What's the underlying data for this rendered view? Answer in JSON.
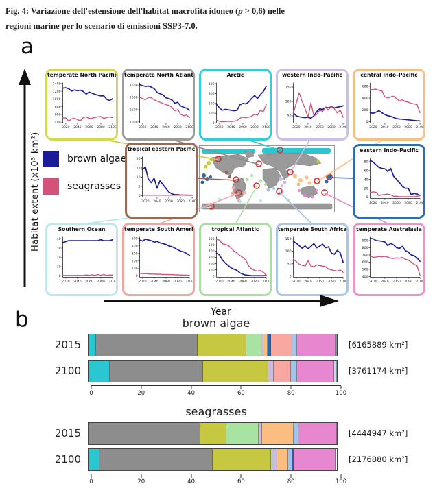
{
  "figure": {
    "caption_part1": "Fig. 4: Variazione dell'estensione dell'habitat macrofita idoneo (",
    "caption_p": "p",
    "caption_part2": " > 0,6) nelle",
    "caption_line2": "regioni marine per lo scenario di emissioni SSP3-7.0.",
    "panel_a_label": "a",
    "panel_b_label": "b"
  },
  "panel_a": {
    "y_axis_label": "Habitat extent (x10³ km²)",
    "x_axis_label": "Year",
    "years": [
      2015,
      2020,
      2025,
      2030,
      2035,
      2040,
      2045,
      2050,
      2055,
      2060,
      2065,
      2070,
      2075,
      2080,
      2085,
      2090,
      2095,
      2100
    ],
    "xticks": [
      2020,
      2040,
      2060,
      2080,
      2100
    ],
    "series_colors": {
      "brown_algae": "#1c1c99",
      "seagrasses": "#d4517a"
    },
    "legend": [
      {
        "series": "brown_algae",
        "label": "brown algae"
      },
      {
        "series": "seagrasses",
        "label": "seagrasses"
      }
    ]
  },
  "region_colors": {
    "arctic": "#2cc6d0",
    "temperate_north_atlantic": "#8d8d8d",
    "temperate_north_pacific": "#c6c93f",
    "tropical_atlantic": "#a9e3a1",
    "western_indo_pacific": "#c9bce0",
    "central_indo_pacific": "#fbbd80",
    "eastern_indo_pacific": "#2c66ae",
    "tropical_eastern_pacific": "#96604f",
    "temperate_south_america": "#f8a8a0",
    "temperate_south_africa": "#a3c4e9",
    "temperate_australasia": "#e687cf",
    "southern_ocean": "#aee8ed"
  },
  "chart_data": [
    {
      "id": "temperate-north-pacific",
      "type": "line",
      "title": "temperate North Pacific",
      "border_color": "#d4d94e",
      "ylim": [
        380,
        1420
      ],
      "yticks": [
        400,
        600,
        800,
        1000,
        1200,
        1400
      ],
      "series": [
        {
          "name": "brown_algae",
          "values": [
            1280,
            1290,
            1265,
            1205,
            1235,
            1215,
            1230,
            1195,
            1125,
            1180,
            1150,
            1120,
            1100,
            1080,
            1085,
            990,
            960,
            1010
          ]
        },
        {
          "name": "seagrasses",
          "values": [
            510,
            515,
            430,
            490,
            505,
            470,
            435,
            525,
            540,
            500,
            505,
            525,
            540,
            550,
            500,
            525,
            540,
            520
          ]
        }
      ]
    },
    {
      "id": "temperate-north-atlantic",
      "type": "line",
      "title": "temperate North Atlantic",
      "border_color": "#9b9b9b",
      "ylim": [
        950,
        2600
      ],
      "yticks": [
        1000,
        1500,
        2000,
        2500
      ],
      "series": [
        {
          "name": "brown_algae",
          "values": [
            2520,
            2480,
            2450,
            2465,
            2420,
            2350,
            2200,
            2150,
            2100,
            1980,
            1950,
            1900,
            1760,
            1800,
            1650,
            1600,
            1560,
            1480
          ]
        },
        {
          "name": "seagrasses",
          "values": [
            2010,
            1950,
            1905,
            2000,
            1980,
            1900,
            1850,
            1800,
            1750,
            1700,
            1680,
            1600,
            1450,
            1500,
            1310,
            1250,
            1280,
            1180
          ]
        }
      ]
    },
    {
      "id": "arctic",
      "type": "line",
      "title": "Arctic",
      "border_color": "#30ced6",
      "ylim": [
        0,
        410
      ],
      "yticks": [
        0,
        100,
        200,
        300,
        400
      ],
      "series": [
        {
          "name": "brown_algae",
          "values": [
            190,
            155,
            130,
            140,
            135,
            130,
            125,
            130,
            185,
            200,
            195,
            215,
            250,
            280,
            250,
            290,
            320,
            375
          ]
        },
        {
          "name": "seagrasses",
          "values": [
            30,
            18,
            12,
            15,
            18,
            15,
            20,
            25,
            50,
            60,
            55,
            60,
            70,
            90,
            80,
            130,
            115,
            190
          ]
        }
      ]
    },
    {
      "id": "western-indo-pacific",
      "type": "line",
      "title": "western Indo–Pacific",
      "border_color": "#cdbfe6",
      "ylim": [
        25,
        165
      ],
      "yticks": [
        50,
        100,
        150
      ],
      "series": [
        {
          "name": "brown_algae",
          "values": [
            60,
            50,
            47,
            45,
            44,
            45,
            42,
            50,
            65,
            75,
            72,
            80,
            78,
            82,
            78,
            80,
            82,
            85
          ]
        },
        {
          "name": "seagrasses",
          "values": [
            60,
            95,
            130,
            100,
            75,
            45,
            95,
            50,
            55,
            70,
            65,
            80,
            70,
            85,
            75,
            60,
            70,
            45
          ]
        }
      ]
    },
    {
      "id": "central-indo-pacific",
      "type": "line",
      "title": "central Indo–Pacific",
      "border_color": "#f8bf85",
      "ylim": [
        -25,
        660
      ],
      "yticks": [
        0,
        200,
        400,
        600
      ],
      "series": [
        {
          "name": "brown_algae",
          "values": [
            150,
            140,
            160,
            185,
            150,
            120,
            100,
            90,
            70,
            50,
            45,
            40,
            35,
            30,
            25,
            20,
            15,
            10
          ]
        },
        {
          "name": "seagrasses",
          "values": [
            540,
            545,
            550,
            530,
            520,
            420,
            400,
            420,
            430,
            390,
            350,
            370,
            340,
            330,
            310,
            300,
            290,
            150
          ]
        }
      ]
    },
    {
      "id": "tropical-eastern-pacific",
      "type": "line",
      "title": "tropical eastern Pacific",
      "border_color": "#9a6a55",
      "ylim": [
        -0.8,
        21
      ],
      "yticks": [
        0,
        5,
        10,
        15,
        20
      ],
      "series": [
        {
          "name": "brown_algae",
          "values": [
            14,
            15.5,
            9,
            7,
            9.5,
            4,
            8,
            6,
            4,
            2,
            1,
            0.5,
            0.5,
            0.3,
            0.3,
            0.2,
            0.2,
            0.2
          ]
        },
        {
          "name": "seagrasses",
          "values": [
            0.2,
            0.2,
            0.2,
            0.2,
            0.2,
            0.2,
            0.2,
            0.2,
            0.2,
            0.2,
            0.2,
            0.2,
            0.2,
            0.2,
            0.2,
            0.2,
            0.2,
            0.2
          ]
        }
      ]
    },
    {
      "id": "eastern-indo-pacific",
      "type": "line",
      "title": "eastern Indo–Pacific",
      "border_color": "#2e6cb5",
      "ylim": [
        -3,
        88
      ],
      "yticks": [
        0,
        20,
        40,
        60,
        80
      ],
      "series": [
        {
          "name": "brown_algae",
          "values": [
            83,
            79,
            73,
            67,
            65,
            64,
            58,
            65,
            47,
            40,
            33,
            24,
            20,
            20,
            6,
            8,
            7,
            4
          ]
        },
        {
          "name": "seagrasses",
          "values": [
            10,
            12,
            11,
            3,
            5,
            6,
            7,
            5,
            2,
            2,
            1,
            1,
            1,
            1,
            1,
            1,
            2,
            3
          ]
        }
      ]
    },
    {
      "id": "southern-ocean",
      "type": "line",
      "title": "Southern Ocean",
      "border_color": "#bce9ee",
      "ylim": [
        -1.5,
        42
      ],
      "yticks": [
        0,
        10,
        20,
        30,
        40
      ],
      "series": [
        {
          "name": "brown_algae",
          "values": [
            36,
            37,
            38,
            38,
            38,
            38,
            38,
            38,
            38,
            38,
            38,
            38,
            38,
            39,
            38,
            38,
            38,
            39
          ]
        },
        {
          "name": "seagrasses",
          "values": [
            0.5,
            0.5,
            0.5,
            0.5,
            0.5,
            0.5,
            0.5,
            0.5,
            1,
            0.5,
            1.2,
            0.5,
            1.5,
            0.5,
            1.5,
            0.5,
            1,
            1
          ]
        }
      ]
    },
    {
      "id": "temperate-south-america",
      "type": "line",
      "title": "temperate South America",
      "border_color": "#f5a39d",
      "ylim": [
        -18,
        520
      ],
      "yticks": [
        0,
        100,
        200,
        300,
        400,
        500
      ],
      "series": [
        {
          "name": "brown_algae",
          "values": [
            480,
            465,
            490,
            480,
            470,
            450,
            460,
            440,
            430,
            420,
            400,
            390,
            370,
            350,
            330,
            320,
            300,
            275
          ]
        },
        {
          "name": "seagrasses",
          "values": [
            35,
            30,
            30,
            28,
            25,
            25,
            22,
            22,
            20,
            20,
            18,
            18,
            15,
            15,
            12,
            12,
            10,
            8
          ]
        }
      ]
    },
    {
      "id": "tropical-atlantic",
      "type": "line",
      "title": "tropical Atlantic",
      "border_color": "#a6e29e",
      "ylim": [
        -20,
        630
      ],
      "yticks": [
        0,
        100,
        200,
        300,
        400,
        500,
        600
      ],
      "series": [
        {
          "name": "brown_algae",
          "values": [
            370,
            340,
            260,
            210,
            170,
            130,
            110,
            90,
            50,
            30,
            15,
            10,
            5,
            5,
            5,
            5,
            5,
            8
          ]
        },
        {
          "name": "seagrasses",
          "values": [
            590,
            580,
            520,
            510,
            490,
            450,
            400,
            370,
            330,
            300,
            260,
            160,
            120,
            90,
            80,
            90,
            60,
            15
          ]
        }
      ]
    },
    {
      "id": "temperate-south-africa",
      "type": "line",
      "title": "temperate South Africa",
      "border_color": "#a7c8ec",
      "ylim": [
        -5,
        158
      ],
      "yticks": [
        0,
        50,
        100,
        150
      ],
      "series": [
        {
          "name": "brown_algae",
          "values": [
            140,
            133,
            123,
            112,
            122,
            110,
            120,
            131,
            114,
            121,
            129,
            114,
            118,
            93,
            88,
            104,
            94,
            56
          ]
        },
        {
          "name": "seagrasses",
          "values": [
            70,
            58,
            48,
            44,
            40,
            62,
            40,
            38,
            45,
            42,
            40,
            38,
            28,
            25,
            22,
            20,
            25,
            15
          ]
        }
      ]
    },
    {
      "id": "temperate-australasia",
      "type": "line",
      "title": "temperate Australasia",
      "border_color": "#f58fc9",
      "ylim": [
        390,
        950
      ],
      "yticks": [
        400,
        500,
        600,
        700,
        800,
        900
      ],
      "series": [
        {
          "name": "brown_algae",
          "values": [
            930,
            925,
            900,
            895,
            890,
            880,
            830,
            860,
            840,
            800,
            790,
            820,
            760,
            740,
            700,
            690,
            660,
            610
          ]
        },
        {
          "name": "seagrasses",
          "values": [
            690,
            665,
            670,
            680,
            675,
            680,
            670,
            655,
            650,
            660,
            655,
            665,
            640,
            630,
            600,
            570,
            550,
            420
          ]
        }
      ]
    },
    {
      "id": "brown-algae-bars",
      "type": "stacked_bar",
      "title": "brown algae",
      "xticks": [
        0,
        20,
        40,
        60,
        80,
        100
      ],
      "rows": [
        {
          "year": "2015",
          "total": "[6165889 km²]",
          "segments": [
            {
              "region": "arctic",
              "value": 3
            },
            {
              "region": "temperate_north_atlantic",
              "value": 41
            },
            {
              "region": "temperate_north_pacific",
              "value": 19.5
            },
            {
              "region": "tropical_atlantic",
              "value": 6
            },
            {
              "region": "western_indo_pacific",
              "value": 1
            },
            {
              "region": "central_indo_pacific",
              "value": 1.5
            },
            {
              "region": "eastern_indo_pacific",
              "value": 1.5
            },
            {
              "region": "temperate_south_america",
              "value": 8.5
            },
            {
              "region": "temperate_south_africa",
              "value": 2
            },
            {
              "region": "temperate_australasia",
              "value": 15.5
            },
            {
              "region": "southern_ocean",
              "value": 0.5
            }
          ]
        },
        {
          "year": "2100",
          "total": "[3761174 km²]",
          "segments": [
            {
              "region": "arctic",
              "value": 8.5
            },
            {
              "region": "temperate_north_atlantic",
              "value": 37.5
            },
            {
              "region": "temperate_north_pacific",
              "value": 26.5
            },
            {
              "region": "western_indo_pacific",
              "value": 2
            },
            {
              "region": "temperate_south_america",
              "value": 7
            },
            {
              "region": "temperate_south_africa",
              "value": 2.5
            },
            {
              "region": "temperate_australasia",
              "value": 15
            },
            {
              "region": "southern_ocean",
              "value": 1
            }
          ]
        }
      ]
    },
    {
      "id": "seagrasses-bars",
      "type": "stacked_bar",
      "title": "seagrasses",
      "xticks": [
        0,
        20,
        40,
        60,
        80,
        100
      ],
      "rows": [
        {
          "year": "2015",
          "total": "[4444947 km²]",
          "segments": [
            {
              "region": "temperate_north_atlantic",
              "value": 45
            },
            {
              "region": "temperate_north_pacific",
              "value": 10.5
            },
            {
              "region": "tropical_atlantic",
              "value": 13
            },
            {
              "region": "western_indo_pacific",
              "value": 1.5
            },
            {
              "region": "central_indo_pacific",
              "value": 12.5
            },
            {
              "region": "temperate_south_africa",
              "value": 2
            },
            {
              "region": "temperate_australasia",
              "value": 15.5
            }
          ]
        },
        {
          "year": "2100",
          "total": "[2176880 km²]",
          "segments": [
            {
              "region": "arctic",
              "value": 4.5
            },
            {
              "region": "temperate_north_atlantic",
              "value": 45.5
            },
            {
              "region": "temperate_north_pacific",
              "value": 23.5
            },
            {
              "region": "tropical_atlantic",
              "value": 0.5
            },
            {
              "region": "western_indo_pacific",
              "value": 2
            },
            {
              "region": "central_indo_pacific",
              "value": 4.5
            },
            {
              "region": "temperate_south_africa",
              "value": 1.5
            },
            {
              "region": "eastern_indo_pacific",
              "value": 0.5
            },
            {
              "region": "temperate_australasia",
              "value": 17
            }
          ]
        }
      ]
    }
  ]
}
